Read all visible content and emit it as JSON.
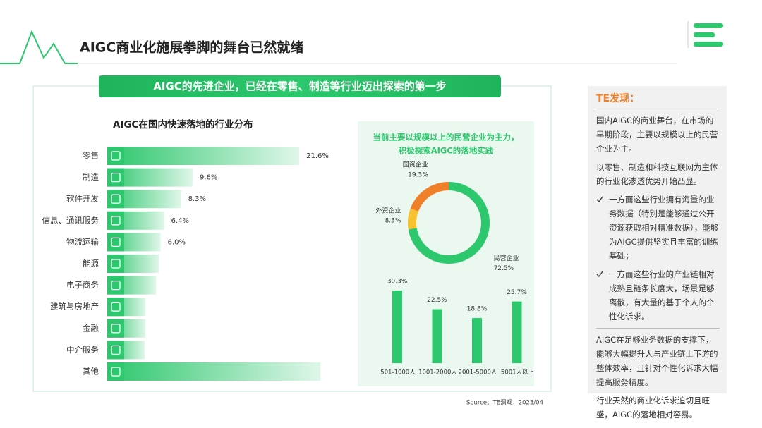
{
  "header": {
    "title": "AIGC商业化施展拳脚的舞台已然就绪",
    "banner": "AIGC的先进企业，已经在零售、制造等行业迈出探索的第一步"
  },
  "chart_data": [
    {
      "type": "hbar",
      "title": "AIGC在国内快速落地的行业分布",
      "categories": [
        "零售",
        "制造",
        "软件开发",
        "信息、通讯服务",
        "物流运输",
        "能源",
        "电子商务",
        "建筑与房地产",
        "金融",
        "中介服务",
        "其他"
      ],
      "values": [
        21.6,
        9.6,
        8.3,
        6.4,
        6.0,
        5.8,
        5.5,
        4.3,
        4.3,
        4.2,
        24.0
      ],
      "value_labels": [
        "21.6%",
        "9.6%",
        "8.3%",
        "6.4%",
        "6.0%",
        null,
        null,
        null,
        null,
        null,
        null
      ],
      "color": "#2dc76d"
    },
    {
      "type": "donut",
      "title": [
        "当前主要以规模以上的民营企业为主力，",
        "积极探索AIGC的落地实践"
      ],
      "categories": [
        "民营企业",
        "外资企业",
        "国资企业"
      ],
      "values": [
        72.5,
        8.3,
        19.3
      ],
      "value_labels": [
        "72.5%",
        "8.3%",
        "19.3%"
      ],
      "colors": [
        "#2dc76d",
        "#f6c231",
        "#f07f2a"
      ]
    },
    {
      "type": "bar",
      "categories": [
        "501-1000人",
        "1001-2000人",
        "2001-5000人",
        "5001人以上"
      ],
      "values": [
        30.3,
        22.5,
        18.8,
        25.7
      ],
      "value_labels": [
        "30.3%",
        "22.5%",
        "18.8%",
        "25.7%"
      ],
      "color": "#2dc76d"
    }
  ],
  "sidebar": {
    "title": "TE发现：",
    "paragraphs": [
      "国内AIGC的商业舞台，在市场的早期阶段，主要以规模以上的民营企业为主。",
      "以零售、制造和科技互联网为主体的行业化渗透优势开始凸显。"
    ],
    "bullets": [
      "一方面这些行业拥有海量的业务数据（特别是能够通过公开资源获取相对精准数据），能够为AIGC提供坚实且丰富的训练基础；",
      "一方面这些行业的产业链相对成熟且链条长度大，场景足够离散，有大量的基于个人的个性化诉求。"
    ],
    "closing": [
      "AIGC在足够业务数据的支撑下，能够大幅提升人与产业链上下游的整体效率，且针对个性化诉求大幅提高服务精度。",
      "行业天然的商业化诉求迫切且旺盛，AIGC的落地相对容易。"
    ]
  },
  "source": "Source：TE洞观，2023/04"
}
